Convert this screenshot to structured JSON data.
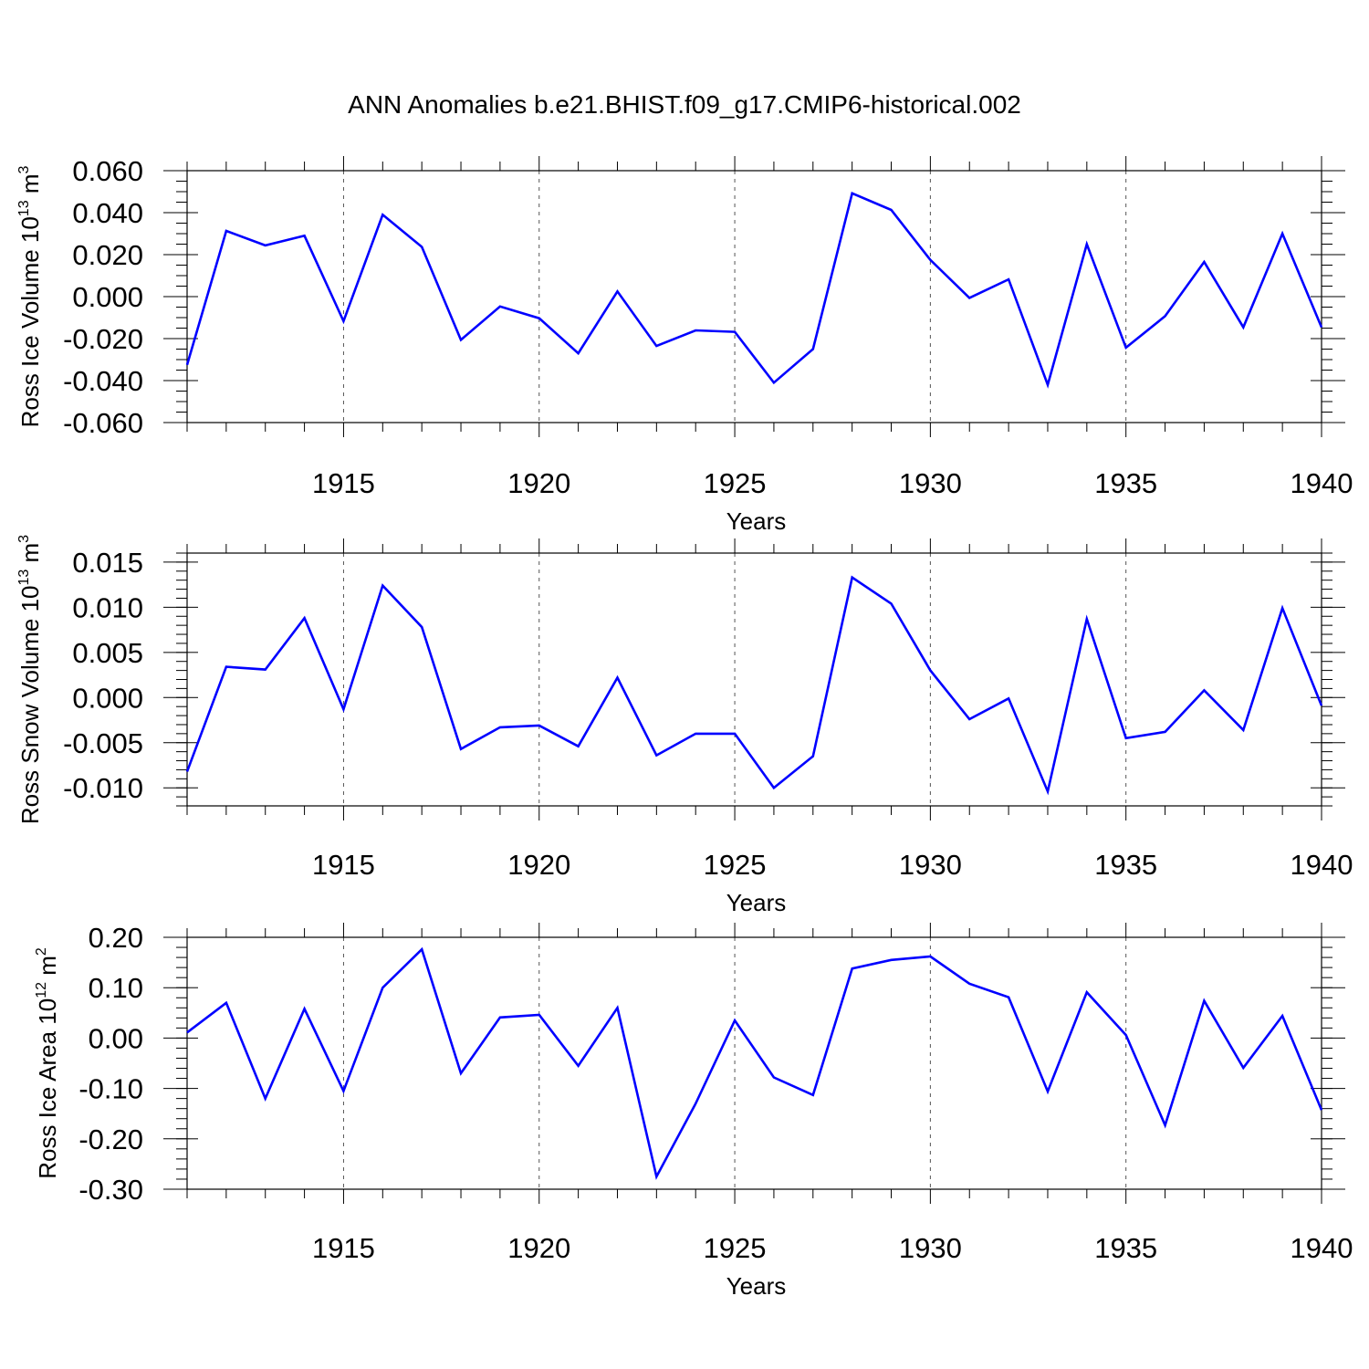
{
  "figure_title": "ANN Anomalies b.e21.BHIST.f09_g17.CMIP6-historical.002",
  "line_color": "#0000ff",
  "chart_data": [
    {
      "type": "line",
      "title": "",
      "ylabel": {
        "main": "Ross Ice Volume 10",
        "exp": "13",
        "tail": " m",
        "unit_exp": "3"
      },
      "xlabel": "Years",
      "xlim": [
        1911,
        1940
      ],
      "x_ticks": [
        "1915",
        "1920",
        "1925",
        "1930",
        "1935",
        "1940"
      ],
      "x_tick_values": [
        1915,
        1920,
        1925,
        1930,
        1935,
        1940
      ],
      "ylim": [
        -0.06,
        0.06
      ],
      "y_ticks": [
        "0.060",
        "0.040",
        "0.020",
        "0.000",
        "-0.020",
        "-0.040",
        "-0.060"
      ],
      "y_tick_values": [
        0.06,
        0.04,
        0.02,
        0.0,
        -0.02,
        -0.04,
        -0.06
      ],
      "y_minor_step": 0.005,
      "x": [
        1911,
        1912,
        1913,
        1914,
        1915,
        1916,
        1917,
        1918,
        1919,
        1920,
        1921,
        1922,
        1923,
        1924,
        1925,
        1926,
        1927,
        1928,
        1929,
        1930,
        1931,
        1932,
        1933,
        1934,
        1935,
        1936,
        1937,
        1938,
        1939,
        1940
      ],
      "values": [
        -0.0325,
        0.0313,
        0.0244,
        0.029,
        -0.0117,
        0.039,
        0.0237,
        -0.0206,
        -0.0047,
        -0.0103,
        -0.027,
        0.0025,
        -0.0235,
        -0.0161,
        -0.0168,
        -0.041,
        -0.025,
        0.0492,
        0.0413,
        0.0175,
        -0.0006,
        0.0082,
        -0.042,
        0.025,
        -0.0243,
        -0.0093,
        0.0165,
        -0.0146,
        0.03,
        -0.0146
      ]
    },
    {
      "type": "line",
      "title": "",
      "ylabel": {
        "main": "Ross Snow Volume 10",
        "exp": "13",
        "tail": " m",
        "unit_exp": "3"
      },
      "xlabel": "Years",
      "xlim": [
        1911,
        1940
      ],
      "x_ticks": [
        "1915",
        "1920",
        "1925",
        "1930",
        "1935",
        "1940"
      ],
      "x_tick_values": [
        1915,
        1920,
        1925,
        1930,
        1935,
        1940
      ],
      "ylim": [
        -0.012,
        0.016
      ],
      "y_ticks": [
        "0.015",
        "0.010",
        "0.005",
        "0.000",
        "-0.005",
        "-0.010"
      ],
      "y_tick_values": [
        0.015,
        0.01,
        0.005,
        0.0,
        -0.005,
        -0.01
      ],
      "y_minor_step": 0.001,
      "x": [
        1911,
        1912,
        1913,
        1914,
        1915,
        1916,
        1917,
        1918,
        1919,
        1920,
        1921,
        1922,
        1923,
        1924,
        1925,
        1926,
        1927,
        1928,
        1929,
        1930,
        1931,
        1932,
        1933,
        1934,
        1935,
        1936,
        1937,
        1938,
        1939,
        1940
      ],
      "values": [
        -0.0082,
        0.0034,
        0.0031,
        0.0088,
        -0.0013,
        0.0124,
        0.0078,
        -0.0057,
        -0.0033,
        -0.0031,
        -0.0054,
        0.0022,
        -0.0064,
        -0.004,
        -0.004,
        -0.01,
        -0.0065,
        0.0133,
        0.0104,
        0.003,
        -0.0024,
        -0.0001,
        -0.0104,
        0.0087,
        -0.0045,
        -0.0038,
        0.0008,
        -0.0036,
        0.0099,
        -0.0009
      ]
    },
    {
      "type": "line",
      "title": "",
      "ylabel": {
        "main": "Ross Ice Area 10",
        "exp": "12",
        "tail": " m",
        "unit_exp": "2"
      },
      "xlabel": "Years",
      "xlim": [
        1911,
        1940
      ],
      "x_ticks": [
        "1915",
        "1920",
        "1925",
        "1930",
        "1935",
        "1940"
      ],
      "x_tick_values": [
        1915,
        1920,
        1925,
        1930,
        1935,
        1940
      ],
      "ylim": [
        -0.3,
        0.2
      ],
      "y_ticks": [
        "0.20",
        "0.10",
        "0.00",
        "-0.10",
        "-0.20",
        "-0.30"
      ],
      "y_tick_values": [
        0.2,
        0.1,
        0.0,
        -0.1,
        -0.2,
        -0.3
      ],
      "y_minor_step": 0.02,
      "x": [
        1911,
        1912,
        1913,
        1914,
        1915,
        1916,
        1917,
        1918,
        1919,
        1920,
        1921,
        1922,
        1923,
        1924,
        1925,
        1926,
        1927,
        1928,
        1929,
        1930,
        1931,
        1932,
        1933,
        1934,
        1935,
        1936,
        1937,
        1938,
        1939,
        1940
      ],
      "values": [
        0.011,
        0.07,
        -0.12,
        0.058,
        -0.105,
        0.1,
        0.176,
        -0.07,
        0.041,
        0.046,
        -0.055,
        0.06,
        -0.275,
        -0.13,
        0.035,
        -0.078,
        -0.113,
        0.138,
        0.155,
        0.162,
        0.108,
        0.081,
        -0.106,
        0.091,
        0.006,
        -0.173,
        0.074,
        -0.059,
        0.044,
        -0.143
      ]
    }
  ]
}
